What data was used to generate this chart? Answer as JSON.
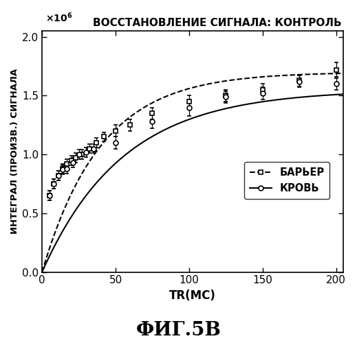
{
  "title": "ВОССТАНОВЛЕНИЕ СИГНАЛА: КОНТРОЛЬ",
  "xlabel": "TR(МС)",
  "ylabel": "ИНТЕГРАЛ (ПРОИЗВ.) СИГНАЛА",
  "fig_label": "ФИГ.5В",
  "xlim": [
    0,
    205
  ],
  "ylim": [
    0,
    2.05
  ],
  "xticks": [
    0,
    50,
    100,
    150,
    200
  ],
  "yticks": [
    0,
    0.5,
    1.0,
    1.5,
    2.0
  ],
  "barrier_x": [
    5,
    8,
    11,
    14,
    17,
    20,
    23,
    27,
    32,
    37,
    42,
    50,
    60,
    75,
    100,
    125,
    150,
    175,
    200
  ],
  "barrier_y": [
    0.65,
    0.75,
    0.82,
    0.88,
    0.92,
    0.95,
    0.97,
    1.0,
    1.05,
    1.1,
    1.15,
    1.2,
    1.25,
    1.35,
    1.45,
    1.5,
    1.55,
    1.63,
    1.72
  ],
  "barrier_yerr": [
    0.04,
    0.04,
    0.04,
    0.04,
    0.04,
    0.04,
    0.04,
    0.04,
    0.04,
    0.04,
    0.04,
    0.05,
    0.05,
    0.05,
    0.05,
    0.05,
    0.05,
    0.05,
    0.06
  ],
  "blood_x": [
    5,
    8,
    11,
    14,
    17,
    21,
    25,
    30,
    35,
    50,
    75,
    100,
    125,
    150,
    175,
    200
  ],
  "blood_y": [
    0.65,
    0.75,
    0.82,
    0.87,
    0.88,
    0.93,
    1.0,
    1.02,
    1.05,
    1.1,
    1.28,
    1.4,
    1.49,
    1.52,
    1.62,
    1.6
  ],
  "blood_yerr": [
    0.04,
    0.04,
    0.04,
    0.04,
    0.04,
    0.04,
    0.04,
    0.04,
    0.04,
    0.05,
    0.06,
    0.07,
    0.05,
    0.05,
    0.05,
    0.05
  ],
  "barrier_fit_T1": 40,
  "barrier_fit_A": 1.7,
  "blood_fit_T1": 55,
  "blood_fit_A": 1.55,
  "legend_barrier": "БАРЬЕР",
  "legend_blood": "КРОВЬ",
  "background_color": "#ffffff"
}
